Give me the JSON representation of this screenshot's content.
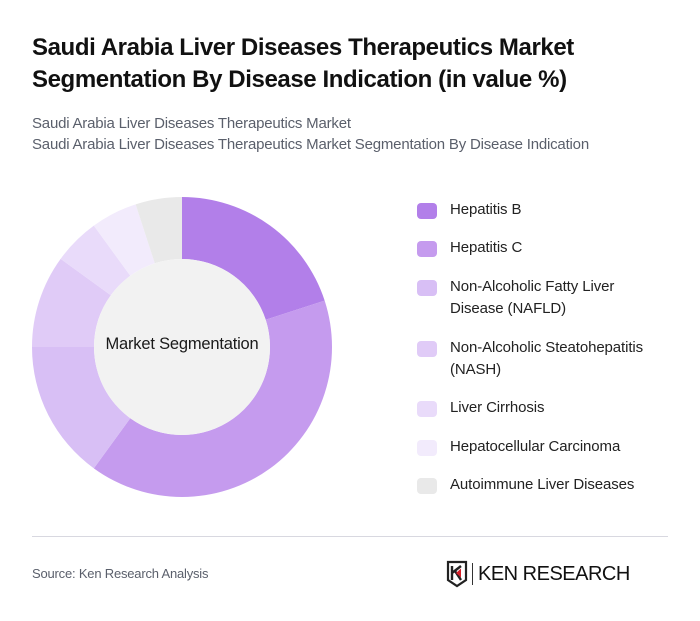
{
  "header": {
    "title": "Saudi Arabia Liver Diseases Therapeutics Market Segmentation By Disease Indication (in value %)",
    "subtitle_line1": "Saudi Arabia Liver Diseases Therapeutics Market",
    "subtitle_line2": "Saudi Arabia Liver Diseases Therapeutics Market Segmentation By Disease Indication"
  },
  "chart_data": {
    "type": "pie",
    "variant": "donut",
    "title": "Saudi Arabia Liver Diseases Therapeutics Market Segmentation By Disease Indication (in value %)",
    "center_label": "Market Segmentation",
    "categories": [
      "Hepatitis B",
      "Hepatitis C",
      "Non-Alcoholic Fatty Liver Disease (NAFLD)",
      "Non-Alcoholic Steatohepatitis (NASH)",
      "Liver Cirrhosis",
      "Hepatocellular Carcinoma",
      "Autoimmune Liver Diseases"
    ],
    "values": [
      20,
      40,
      15,
      10,
      5,
      5,
      5
    ],
    "colors": [
      "#b27fe9",
      "#c59bee",
      "#d8bff5",
      "#e0cbf7",
      "#e9dbfa",
      "#f2ebfc",
      "#e9e9e9"
    ],
    "legend_position": "right",
    "unit": "%"
  },
  "legend": {
    "items": [
      {
        "label_line1": "Hepatitis B",
        "label_line2": ""
      },
      {
        "label_line1": "Hepatitis C",
        "label_line2": ""
      },
      {
        "label_line1": "Non-Alcoholic Fatty Liver",
        "label_line2": "Disease (NAFLD)"
      },
      {
        "label_line1": "Non-Alcoholic Steatohepatitis",
        "label_line2": "(NASH)"
      },
      {
        "label_line1": "Liver Cirrhosis",
        "label_line2": ""
      },
      {
        "label_line1": "Hepatocellular Carcinoma",
        "label_line2": ""
      },
      {
        "label_line1": "Autoimmune Liver Diseases",
        "label_line2": ""
      }
    ]
  },
  "footer": {
    "source": "Source: Ken Research Analysis",
    "logo_text": "KEN RESEARCH",
    "logo_icon": "ken-research-k-shield-icon",
    "logo_accent": "#d6202a"
  }
}
